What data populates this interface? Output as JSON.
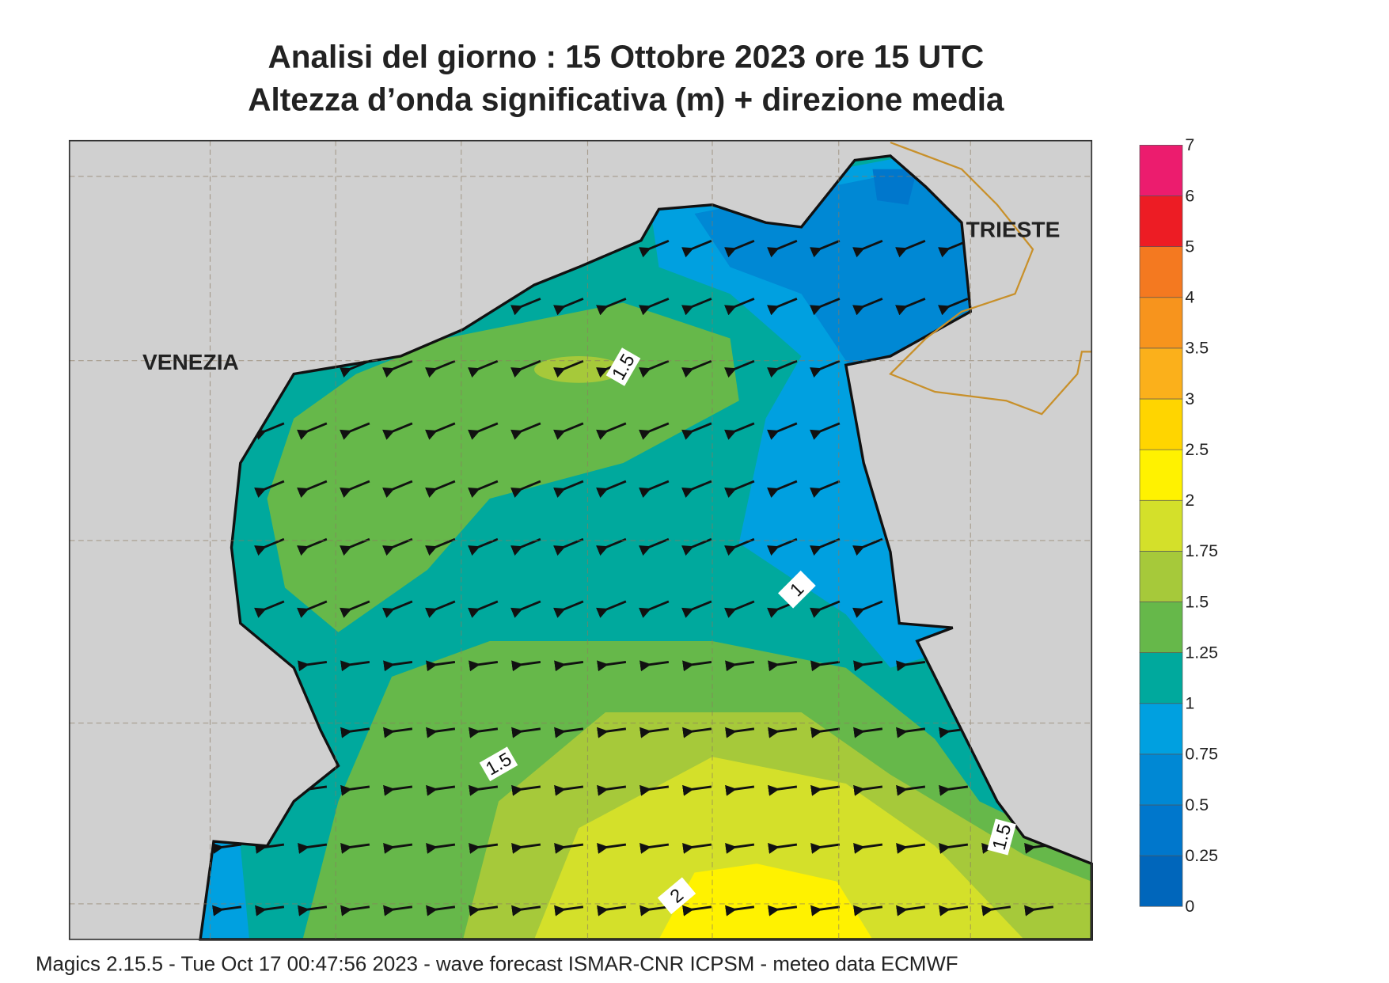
{
  "header": {
    "title": "Analisi del giorno :  15  Ottobre  2023   ore 15 UTC",
    "subtitle": "Altezza d’onda significativa (m) + direzione media"
  },
  "map": {
    "places": [
      "VENEZIA",
      "TRIESTE"
    ],
    "contour_labels": [
      "1.5",
      "1",
      "1.5",
      "2",
      "1.5"
    ]
  },
  "colorbar": {
    "ticks": [
      "0",
      "0.25",
      "0.5",
      "0.75",
      "1",
      "1.25",
      "1.5",
      "1.75",
      "2",
      "2.5",
      "3",
      "3.5",
      "4",
      "5",
      "6",
      "7"
    ],
    "colors": [
      "#0066bb",
      "#0077cc",
      "#0088d4",
      "#00a0e0",
      "#00a99d",
      "#66b84a",
      "#a6c93a",
      "#d4e02a",
      "#fff200",
      "#ffd500",
      "#fbb01b",
      "#f7941d",
      "#f47920",
      "#ed1c24",
      "#ec1c6e"
    ]
  },
  "footer": "Magics 2.15.5 - Tue Oct 17 00:47:56 2023 - wave forecast  ISMAR-CNR  ICPSM - meteo data   ECMWF"
}
